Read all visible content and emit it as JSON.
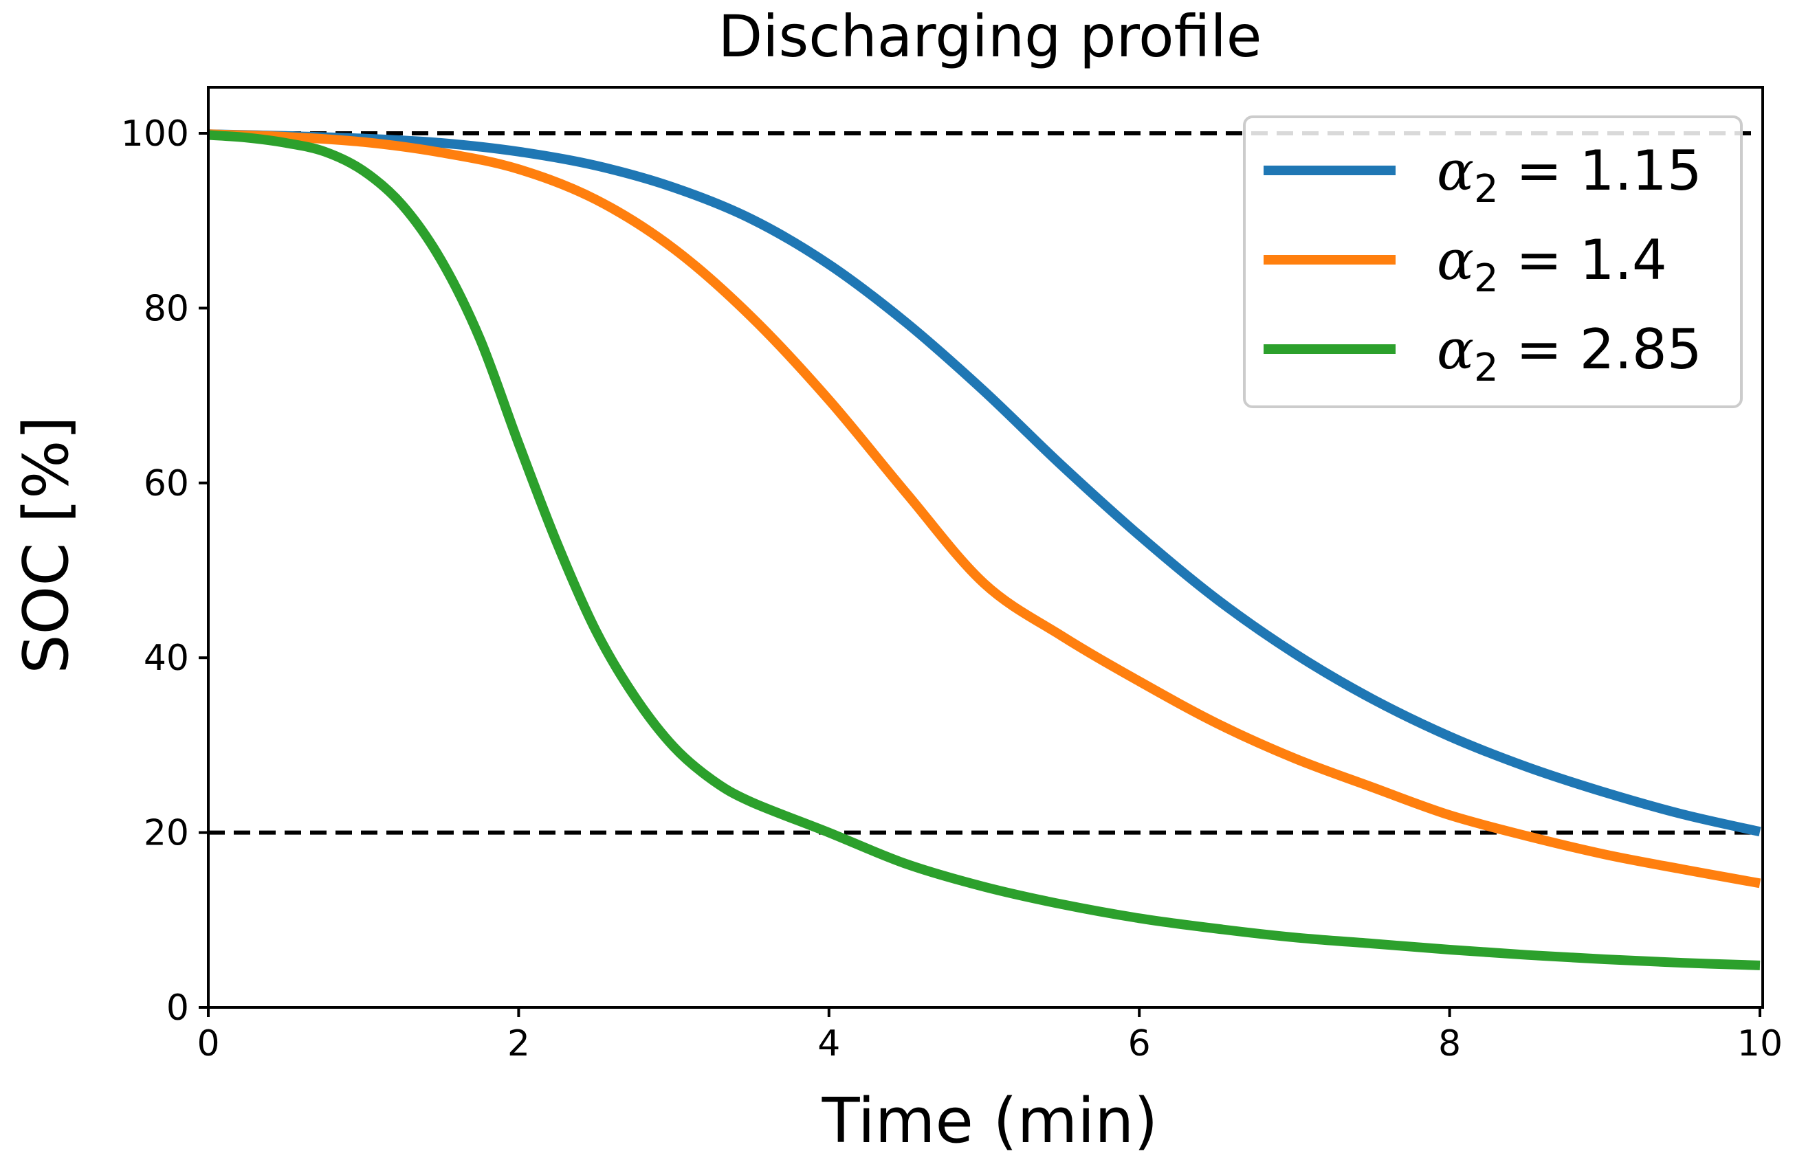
{
  "chart_data": {
    "type": "line",
    "title": "Discharging profile",
    "xlabel": "Time (min)",
    "ylabel": "SOC [%]",
    "xlim": [
      0,
      10
    ],
    "ylim": [
      0,
      105
    ],
    "xticks": [
      0,
      2,
      4,
      6,
      8,
      10
    ],
    "yticks": [
      0,
      20,
      40,
      60,
      80,
      100
    ],
    "xtick_labels": [
      "0",
      "2",
      "4",
      "6",
      "8",
      "10"
    ],
    "ytick_labels": [
      "0",
      "20",
      "40",
      "60",
      "80",
      "100"
    ],
    "grid": false,
    "legend_position": "top-right",
    "hlines": [
      {
        "y": 100,
        "style": "dashed",
        "color": "#000000"
      },
      {
        "y": 20,
        "style": "dashed",
        "color": "#000000"
      }
    ],
    "series": [
      {
        "name": "α₂ = 1.15",
        "symbol": "α",
        "subscript": "2",
        "value": "1.15",
        "color": "#1f77b4",
        "x": [
          0,
          0.5,
          1,
          1.5,
          2,
          2.5,
          3,
          3.5,
          4,
          4.5,
          5,
          5.5,
          6,
          6.5,
          7,
          7.5,
          8,
          8.5,
          9,
          9.5,
          10
        ],
        "values": [
          99.9,
          99.7,
          99.4,
          98.9,
          97.9,
          96.3,
          93.8,
          90.2,
          85.0,
          78.3,
          70.5,
          62.0,
          54.0,
          46.7,
          40.5,
          35.3,
          31.0,
          27.5,
          24.6,
          22.1,
          20.1
        ]
      },
      {
        "name": "α₂ = 1.4",
        "symbol": "α",
        "subscript": "2",
        "value": "1.4",
        "color": "#ff7f0e",
        "x": [
          0,
          0.5,
          1,
          1.5,
          2,
          2.5,
          3,
          3.5,
          4,
          4.5,
          5,
          5.5,
          6,
          6.5,
          7,
          7.5,
          8,
          8.5,
          9,
          9.5,
          10
        ],
        "values": [
          99.9,
          99.6,
          99.0,
          97.8,
          95.9,
          92.4,
          86.8,
          79.0,
          69.5,
          58.8,
          48.5,
          42.5,
          37.3,
          32.5,
          28.5,
          25.2,
          22.0,
          19.6,
          17.5,
          15.8,
          14.2
        ]
      },
      {
        "name": "α₂ = 2.85",
        "symbol": "α",
        "subscript": "2",
        "value": "2.85",
        "color": "#2ca02c",
        "x": [
          0,
          0.25,
          0.5,
          0.75,
          1,
          1.25,
          1.5,
          1.75,
          2,
          2.25,
          2.5,
          2.75,
          3,
          3.25,
          3.5,
          4,
          4.5,
          5,
          5.5,
          6,
          6.5,
          7,
          7.5,
          8,
          8.5,
          9,
          9.5,
          10
        ],
        "values": [
          99.8,
          99.5,
          98.9,
          97.9,
          95.7,
          91.8,
          85.5,
          76.5,
          64.5,
          53.0,
          43.0,
          35.5,
          29.8,
          26.0,
          23.5,
          20.0,
          16.4,
          13.8,
          11.8,
          10.2,
          9.0,
          8.0,
          7.3,
          6.6,
          6.0,
          5.5,
          5.1,
          4.8
        ]
      }
    ]
  }
}
